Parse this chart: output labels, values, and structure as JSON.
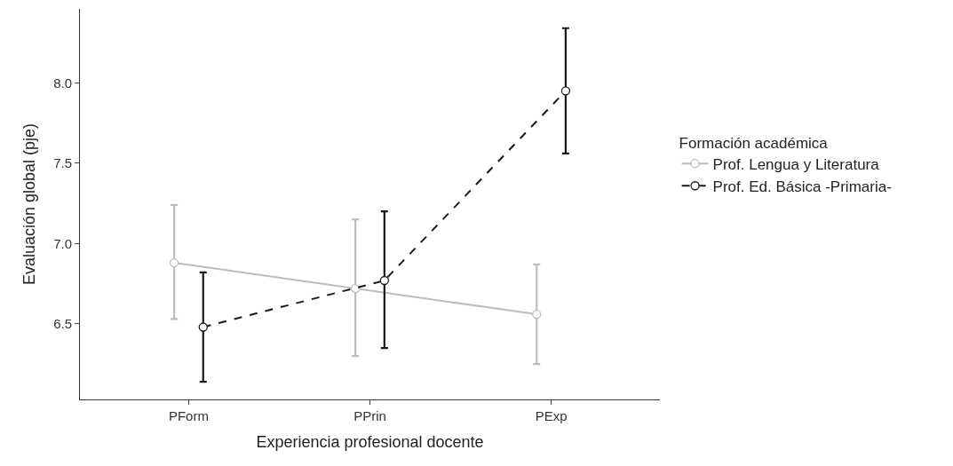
{
  "chart_data": {
    "type": "line",
    "xlabel": "Experiencia profesional docente",
    "ylabel": "Evaluación global (pje)",
    "legend_title": "Formación académica",
    "categories": [
      "PForm",
      "PPrin",
      "PExp"
    ],
    "series": [
      {
        "name": "Prof. Lengua y Literatura",
        "color": "#bdbdbd",
        "line_style": "solid",
        "values": [
          6.88,
          6.72,
          6.56
        ],
        "errors": [
          [
            6.53,
            7.24
          ],
          [
            6.3,
            7.15
          ],
          [
            6.25,
            6.87
          ]
        ]
      },
      {
        "name": "Prof. Ed. Básica -Primaria-",
        "color": "#1a1a1a",
        "line_style": "dashed",
        "values": [
          6.48,
          6.77,
          7.95
        ],
        "errors": [
          [
            6.14,
            6.82
          ],
          [
            6.35,
            7.2
          ],
          [
            7.56,
            8.34
          ]
        ]
      }
    ],
    "ylim": [
      6.03,
      8.46
    ],
    "yticks": [
      {
        "value": 6.5,
        "label": "6.5"
      },
      {
        "value": 7.0,
        "label": "7.0"
      },
      {
        "value": 7.5,
        "label": "7.5"
      },
      {
        "value": 8.0,
        "label": "8.0"
      }
    ],
    "marker": "circle",
    "legend": "right"
  }
}
